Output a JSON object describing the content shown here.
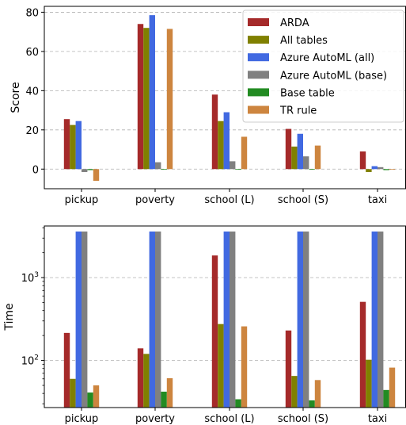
{
  "chart_data": [
    {
      "type": "bar",
      "ylabel": "Score",
      "xlabel": "",
      "ylim": [
        -10,
        83
      ],
      "yticks": [
        0,
        20,
        40,
        60,
        80
      ],
      "grid": "y-dashed",
      "legend_position": "top-right",
      "categories": [
        "pickup",
        "poverty",
        "school (L)",
        "school (S)",
        "taxi"
      ],
      "series": [
        {
          "name": "ARDA",
          "color": "#a52a2a",
          "values": [
            25.5,
            74,
            38,
            20.5,
            9
          ]
        },
        {
          "name": "All tables",
          "color": "#808000",
          "values": [
            22.5,
            72,
            24.5,
            11.5,
            -1.5
          ]
        },
        {
          "name": "Azure AutoML (all)",
          "color": "#4169e1",
          "values": [
            24.5,
            78.5,
            29,
            18,
            1.5
          ]
        },
        {
          "name": "Azure AutoML (base)",
          "color": "#808080",
          "values": [
            -1.5,
            3.5,
            4,
            6.5,
            1
          ]
        },
        {
          "name": "Base table",
          "color": "#228b22",
          "values": [
            -0.5,
            -0.3,
            -0.3,
            -0.3,
            -0.5
          ]
        },
        {
          "name": "TR rule",
          "color": "#cd853f",
          "values": [
            -6,
            71.5,
            16.5,
            12,
            -0.3
          ]
        }
      ]
    },
    {
      "type": "bar",
      "ylabel": "Time",
      "xlabel": "",
      "yscale": "log",
      "ylim": [
        27,
        4200
      ],
      "yticks": [
        100,
        1000
      ],
      "ytick_labels": [
        {
          "base": "10",
          "exp": "2"
        },
        {
          "base": "10",
          "exp": "3"
        }
      ],
      "grid": "y-dashed",
      "categories": [
        "pickup",
        "poverty",
        "school (L)",
        "school (S)",
        "taxi"
      ],
      "series": [
        {
          "name": "ARDA",
          "color": "#a52a2a",
          "values": [
            215,
            140,
            1850,
            230,
            510
          ]
        },
        {
          "name": "All tables",
          "color": "#808000",
          "values": [
            60,
            120,
            275,
            65,
            102
          ]
        },
        {
          "name": "Azure AutoML (all)",
          "color": "#4169e1",
          "values": [
            3600,
            3600,
            3600,
            3600,
            3600
          ]
        },
        {
          "name": "Azure AutoML (base)",
          "color": "#808080",
          "values": [
            3600,
            3600,
            3600,
            3600,
            3600
          ]
        },
        {
          "name": "Base table",
          "color": "#228b22",
          "values": [
            41,
            42,
            34,
            33,
            44
          ]
        },
        {
          "name": "TR rule",
          "color": "#cd853f",
          "values": [
            50,
            61,
            258,
            58,
            82
          ]
        }
      ]
    }
  ]
}
